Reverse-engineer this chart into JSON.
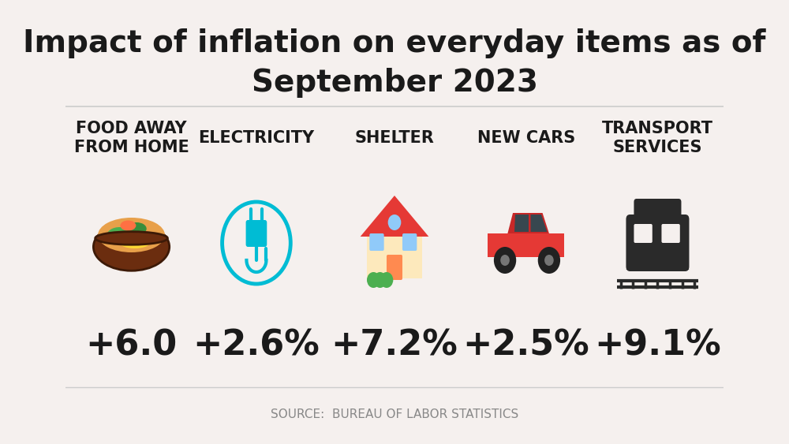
{
  "title_line1": "Impact of inflation on everyday items as of",
  "title_line2": "September 2023",
  "background_color": "#f5f0ee",
  "title_color": "#1a1a1a",
  "title_fontsize": 28,
  "header_fontsize": 15,
  "value_fontsize": 32,
  "source_text": "SOURCE:  BUREAU OF LABOR STATISTICS",
  "source_fontsize": 11,
  "items": [
    {
      "label": "FOOD AWAY\nFROM HOME",
      "value": "+6.0",
      "icon": "food"
    },
    {
      "label": "ELECTRICITY",
      "value": "+2.6%",
      "icon": "electricity"
    },
    {
      "label": "SHELTER",
      "value": "+7.2%",
      "icon": "shelter"
    },
    {
      "label": "NEW CARS",
      "value": "+2.5%",
      "icon": "car"
    },
    {
      "label": "TRANSPORT\nSERVICES",
      "value": "+9.1%",
      "icon": "transport"
    }
  ],
  "label_color": "#1a1a1a",
  "value_color": "#1a1a1a",
  "electricity_color": "#00bcd4",
  "divider_color": "#cccccc",
  "cols": [
    1.0,
    2.9,
    5.0,
    7.0,
    9.0
  ]
}
